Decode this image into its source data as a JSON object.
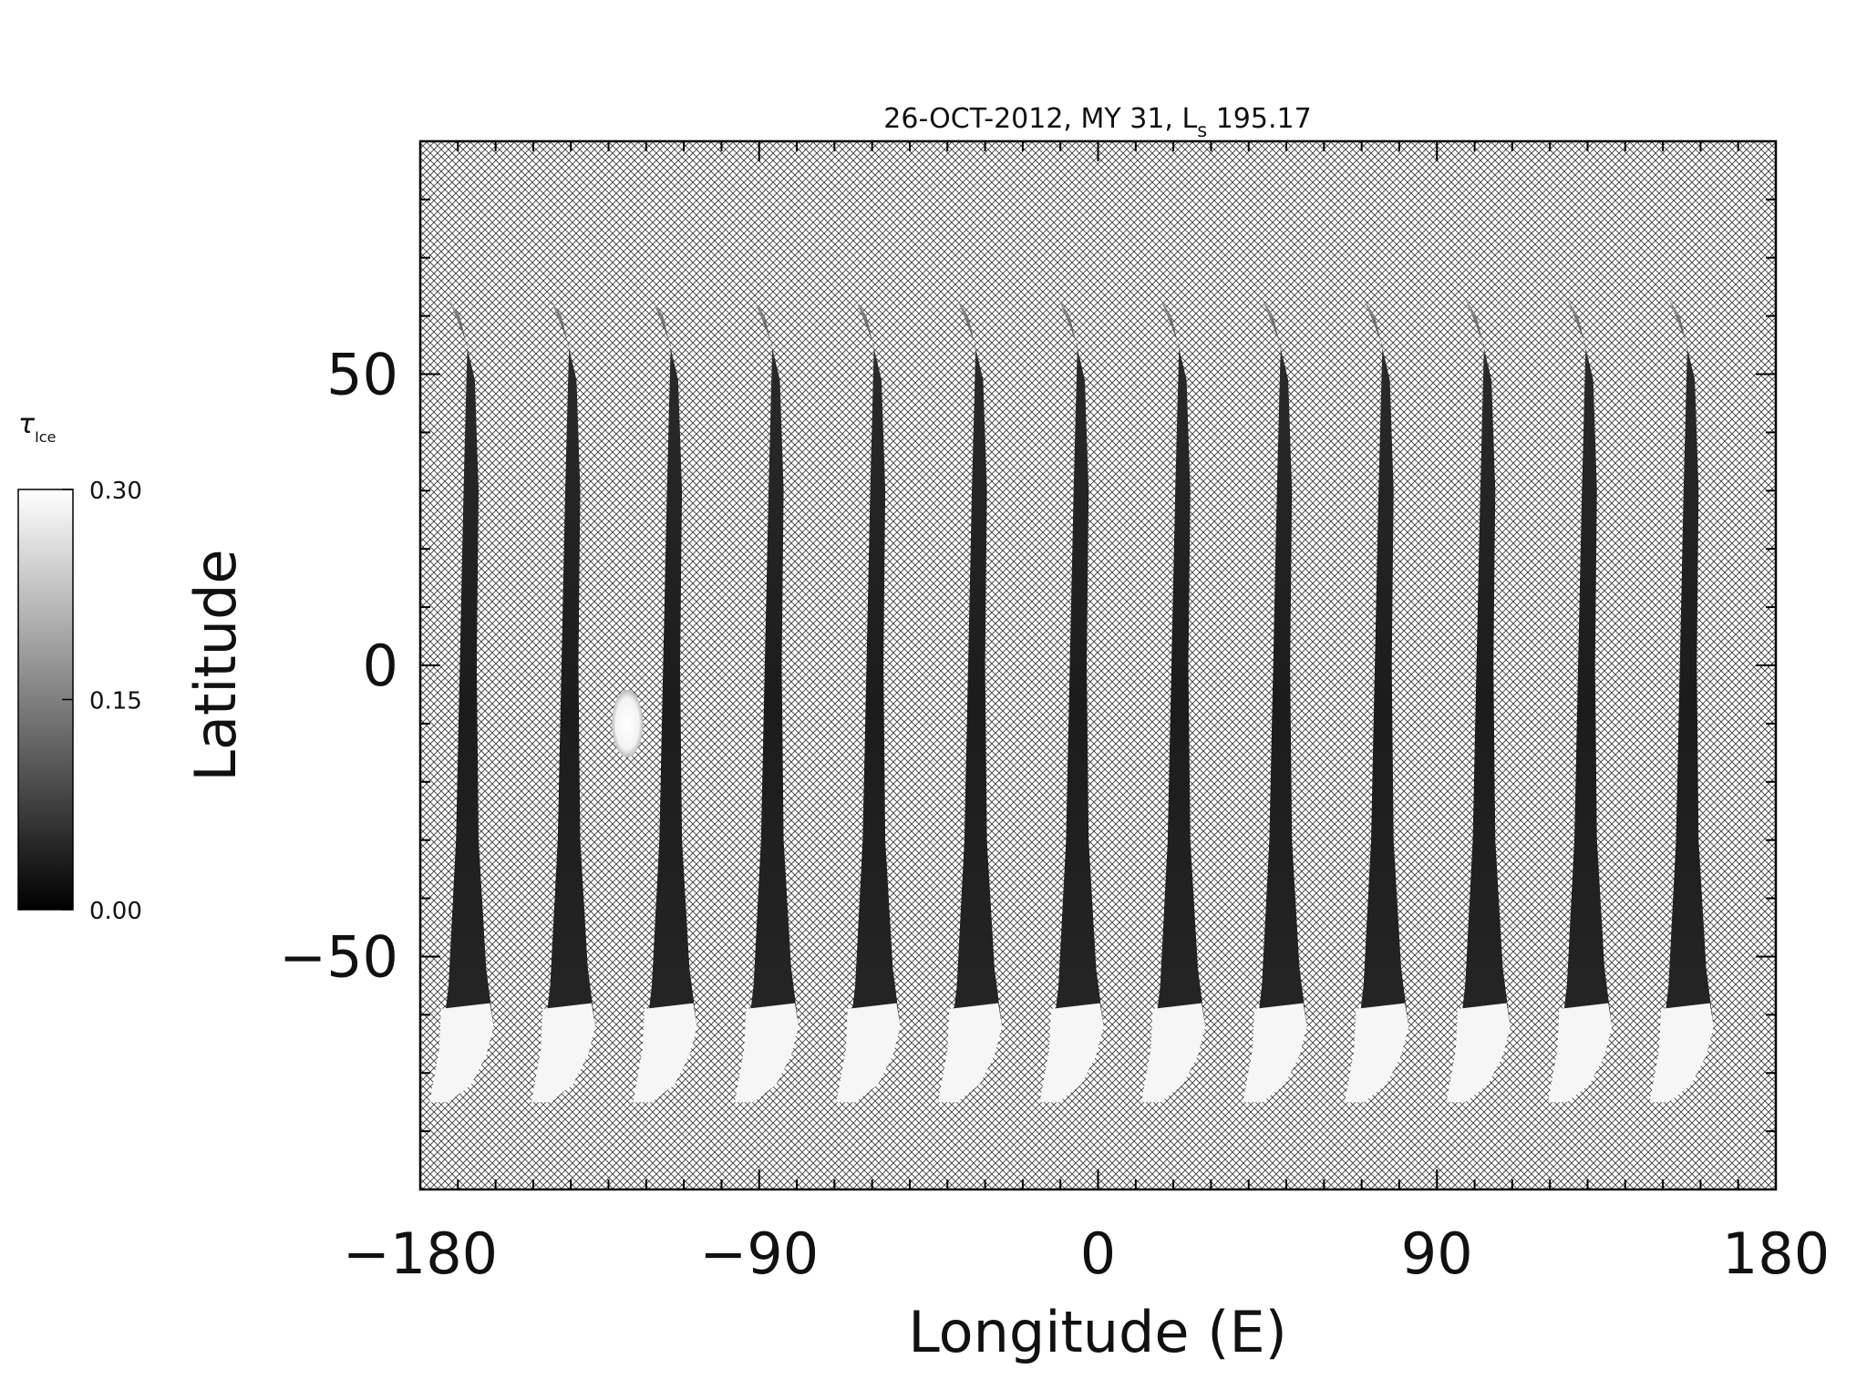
{
  "chart_data": {
    "type": "heatmap",
    "title_prefix": "26-OCT-2012, MY 31,  L",
    "title_subscript": "s",
    "title_suffix": " 195.17",
    "xlabel": "Longitude (E)",
    "ylabel": "Latitude",
    "xlim": [
      -180,
      180
    ],
    "ylim": [
      -90,
      90
    ],
    "x_ticks": [
      -180,
      -90,
      0,
      90,
      180
    ],
    "y_ticks": [
      50,
      0,
      -50
    ],
    "x_tick_labels": [
      "−180",
      "−90",
      "0",
      "90",
      "180"
    ],
    "y_tick_labels": [
      "50",
      "0",
      "−50"
    ],
    "colorbar": {
      "label": "τ",
      "label_subscript": "Ice",
      "min": 0.0,
      "max": 0.3,
      "tick_labels": [
        "0.30",
        "0.15",
        "0.00"
      ],
      "tick_values": [
        0.3,
        0.15,
        0.0
      ]
    },
    "missing_data_pattern": "crosshatch",
    "swaths": [
      {
        "lon_start": -175.5
      },
      {
        "lon_start": -148.5
      },
      {
        "lon_start": -121.5
      },
      {
        "lon_start": -94.5
      },
      {
        "lon_start": -67.5
      },
      {
        "lon_start": -40.5
      },
      {
        "lon_start": -13.5
      },
      {
        "lon_start": 13.5
      },
      {
        "lon_start": 40.5
      },
      {
        "lon_start": 67.5
      },
      {
        "lon_start": 94.5
      },
      {
        "lon_start": 121.5
      },
      {
        "lon_start": 148.5
      }
    ],
    "features": [
      {
        "name": "bright-cloud",
        "lon": -125,
        "lat": -10,
        "value": 0.3
      },
      {
        "name": "south-polar-cap",
        "lat_north": -59,
        "value": 0.3
      }
    ]
  }
}
